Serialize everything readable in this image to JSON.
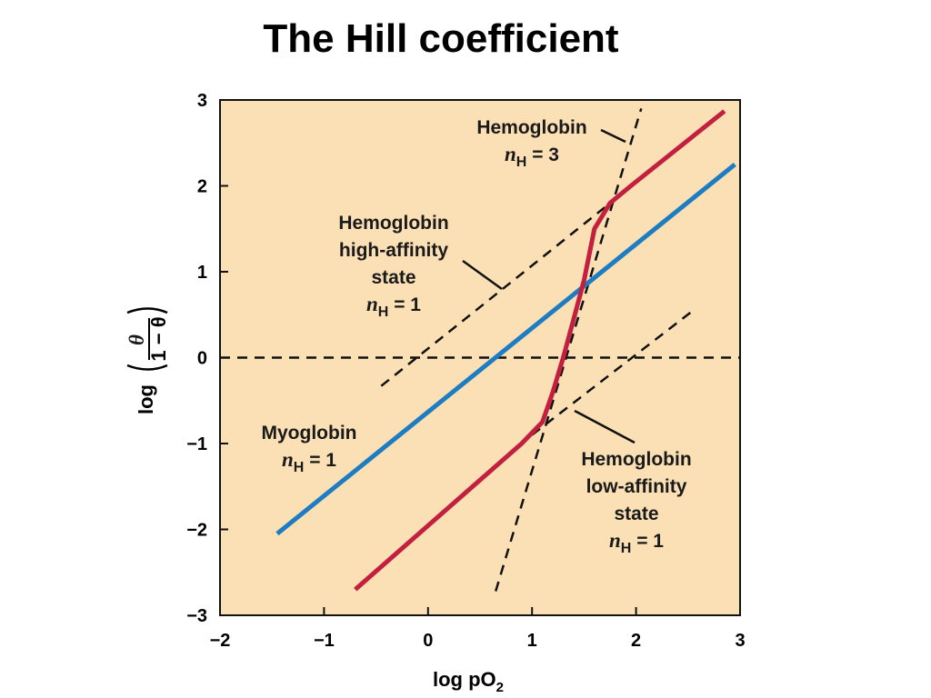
{
  "title": "The Hill coefficient",
  "chart_data": {
    "type": "line",
    "xlim": [
      -2,
      3
    ],
    "ylim": [
      -3,
      3
    ],
    "x_ticks": [
      -2,
      -1,
      0,
      1,
      2,
      3
    ],
    "y_ticks": [
      -3,
      -2,
      -1,
      0,
      1,
      2,
      3
    ],
    "x_tick_labels": [
      "−2",
      "−1",
      "0",
      "1",
      "2",
      "3"
    ],
    "y_tick_labels": [
      "−3",
      "−2",
      "−1",
      "0",
      "1",
      "2",
      "3"
    ],
    "xlabel": "log pO",
    "xlabel_sub": "2",
    "ylabel": "log",
    "ylabel_num": "θ",
    "ylabel_den": "1 − θ",
    "plot_bg": "#fbe0b5",
    "series": [
      {
        "name": "Myoglobin",
        "color": "#1e7cc2",
        "style": "solid",
        "x": [
          -1.45,
          2.95
        ],
        "y": [
          -2.05,
          2.25
        ]
      },
      {
        "name": "Hemoglobin",
        "color": "#c3203f",
        "style": "solid",
        "x": [
          -0.7,
          0.9,
          1.1,
          1.2,
          1.3,
          1.4,
          1.5,
          1.6,
          1.75,
          1.95,
          2.85
        ],
        "y": [
          -2.7,
          -1.0,
          -0.75,
          -0.4,
          0.0,
          0.45,
          0.9,
          1.5,
          1.8,
          2.0,
          2.87
        ]
      },
      {
        "name": "Hemoglobin high-affinity state",
        "color": "#111111",
        "style": "dashed",
        "x": [
          -0.45,
          1.7
        ],
        "y": [
          -0.33,
          1.75
        ]
      },
      {
        "name": "Hemoglobin low-affinity state",
        "color": "#111111",
        "style": "dashed",
        "x": [
          1.0,
          2.55
        ],
        "y": [
          -0.9,
          0.55
        ]
      },
      {
        "name": "Hemoglobin n=3",
        "color": "#111111",
        "style": "dashed",
        "x": [
          0.65,
          2.05
        ],
        "y": [
          -2.72,
          2.9
        ]
      },
      {
        "name": "y = 0",
        "color": "#111111",
        "style": "dashed",
        "x": [
          -2,
          3
        ],
        "y": [
          0,
          0
        ]
      }
    ],
    "annotations": [
      {
        "id": "hb3",
        "lines": [
          "Hemoglobin"
        ],
        "nh": "3"
      },
      {
        "id": "hb-high",
        "lines": [
          "Hemoglobin",
          "high-affinity",
          "state"
        ],
        "nh": "1"
      },
      {
        "id": "mb",
        "lines": [
          "Myoglobin"
        ],
        "nh": "1"
      },
      {
        "id": "hb-low",
        "lines": [
          "Hemoglobin",
          "low-affinity",
          "state"
        ],
        "nh": "1"
      }
    ],
    "nh_symbol": "n",
    "nh_sub": "H",
    "nh_eq": "="
  }
}
